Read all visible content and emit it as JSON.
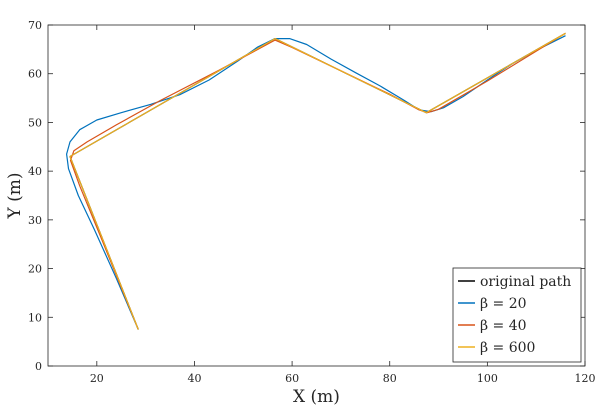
{
  "chart_data": {
    "type": "line",
    "xlabel": "X (m)",
    "ylabel": "Y (m)",
    "xlim": [
      10,
      120
    ],
    "ylim": [
      0,
      70
    ],
    "xticks": [
      20,
      40,
      60,
      80,
      100,
      120
    ],
    "yticks": [
      0,
      10,
      20,
      30,
      40,
      50,
      60,
      70
    ],
    "grid": false,
    "legend_position": "bottom-right",
    "series": [
      {
        "name": "original path",
        "color": "#000000",
        "points": [
          [
            28.5,
            7.5
          ],
          [
            14.5,
            43.0
          ],
          [
            56.5,
            67.2
          ],
          [
            87.5,
            52.0
          ],
          [
            116.0,
            68.3
          ]
        ]
      },
      {
        "name": "β = 20",
        "color": "#0072BD",
        "points": [
          [
            28.5,
            7.5
          ],
          [
            24.0,
            18.0
          ],
          [
            19.5,
            28.0
          ],
          [
            16.2,
            35.0
          ],
          [
            14.2,
            40.5
          ],
          [
            13.8,
            43.5
          ],
          [
            14.5,
            46.0
          ],
          [
            16.5,
            48.5
          ],
          [
            20.0,
            50.5
          ],
          [
            25.0,
            52.0
          ],
          [
            31.0,
            53.7
          ],
          [
            37.0,
            55.7
          ],
          [
            43.0,
            58.7
          ],
          [
            49.0,
            62.7
          ],
          [
            53.0,
            65.5
          ],
          [
            56.5,
            67.2
          ],
          [
            59.5,
            67.2
          ],
          [
            63.0,
            66.0
          ],
          [
            68.0,
            63.0
          ],
          [
            73.0,
            60.2
          ],
          [
            78.0,
            57.5
          ],
          [
            83.0,
            54.5
          ],
          [
            86.0,
            52.6
          ],
          [
            88.5,
            52.2
          ],
          [
            91.0,
            53.0
          ],
          [
            95.0,
            55.3
          ],
          [
            100.0,
            58.7
          ],
          [
            105.0,
            62.0
          ],
          [
            110.0,
            64.8
          ],
          [
            116.0,
            67.8
          ]
        ]
      },
      {
        "name": "β = 40",
        "color": "#D95319",
        "points": [
          [
            28.5,
            7.5
          ],
          [
            21.0,
            26.0
          ],
          [
            16.5,
            37.0
          ],
          [
            14.6,
            42.2
          ],
          [
            15.3,
            44.2
          ],
          [
            18.0,
            46.0
          ],
          [
            24.0,
            49.5
          ],
          [
            33.0,
            54.5
          ],
          [
            45.0,
            60.7
          ],
          [
            53.0,
            65.0
          ],
          [
            56.5,
            66.9
          ],
          [
            60.0,
            65.4
          ],
          [
            70.0,
            60.6
          ],
          [
            80.0,
            55.8
          ],
          [
            86.0,
            52.6
          ],
          [
            87.7,
            52.0
          ],
          [
            90.0,
            52.7
          ],
          [
            100.0,
            58.5
          ],
          [
            116.0,
            68.3
          ]
        ]
      },
      {
        "name": "β = 600",
        "color": "#EDB120",
        "points": [
          [
            28.5,
            7.5
          ],
          [
            14.5,
            43.0
          ],
          [
            56.5,
            67.2
          ],
          [
            87.5,
            52.0
          ],
          [
            116.0,
            68.3
          ]
        ]
      }
    ]
  }
}
